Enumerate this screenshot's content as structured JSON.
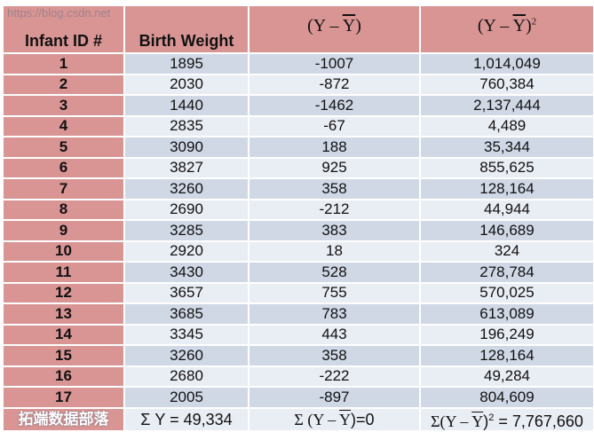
{
  "headers": {
    "id": "Infant ID #",
    "weight": "Birth Weight",
    "dev_open": "(Y – ",
    "dev_bar": "Y",
    "dev_close": ")",
    "sq_sup": "2"
  },
  "rows": [
    {
      "id": "1",
      "weight": "1895",
      "dev": "-1007",
      "sq": "1,014,049"
    },
    {
      "id": "2",
      "weight": "2030",
      "dev": "-872",
      "sq": "760,384"
    },
    {
      "id": "3",
      "weight": "1440",
      "dev": "-1462",
      "sq": "2,137,444"
    },
    {
      "id": "4",
      "weight": "2835",
      "dev": "-67",
      "sq": "4,489"
    },
    {
      "id": "5",
      "weight": "3090",
      "dev": "188",
      "sq": "35,344"
    },
    {
      "id": "6",
      "weight": "3827",
      "dev": "925",
      "sq": "855,625"
    },
    {
      "id": "7",
      "weight": "3260",
      "dev": "358",
      "sq": "128,164"
    },
    {
      "id": "8",
      "weight": "2690",
      "dev": "-212",
      "sq": "44,944"
    },
    {
      "id": "9",
      "weight": "3285",
      "dev": "383",
      "sq": "146,689"
    },
    {
      "id": "10",
      "weight": "2920",
      "dev": "18",
      "sq": "324"
    },
    {
      "id": "11",
      "weight": "3430",
      "dev": "528",
      "sq": "278,784"
    },
    {
      "id": "12",
      "weight": "3657",
      "dev": "755",
      "sq": "570,025"
    },
    {
      "id": "13",
      "weight": "3685",
      "dev": "783",
      "sq": "613,089"
    },
    {
      "id": "14",
      "weight": "3345",
      "dev": "443",
      "sq": "196,249"
    },
    {
      "id": "15",
      "weight": "3260",
      "dev": "358",
      "sq": "128,164"
    },
    {
      "id": "16",
      "weight": "2680",
      "dev": "-222",
      "sq": "49,284"
    },
    {
      "id": "17",
      "weight": "2005",
      "dev": "-897",
      "sq": "804,609"
    }
  ],
  "totals": {
    "sum_y": "Σ Y = 49,334",
    "sum_dev_prefix": "Σ  (Y – ",
    "sum_dev_bar": "Y",
    "sum_dev_suffix": ")=0",
    "sum_sq_prefix": "Σ(Y – ",
    "sum_sq_bar": "Y",
    "sum_sq_suffix": ")",
    "sum_sq_sup": "2",
    "sum_sq_value": " = 7,767,660"
  },
  "watermark": {
    "brand": "拓端数据部落",
    "url": "https://blog.csdn.net"
  }
}
